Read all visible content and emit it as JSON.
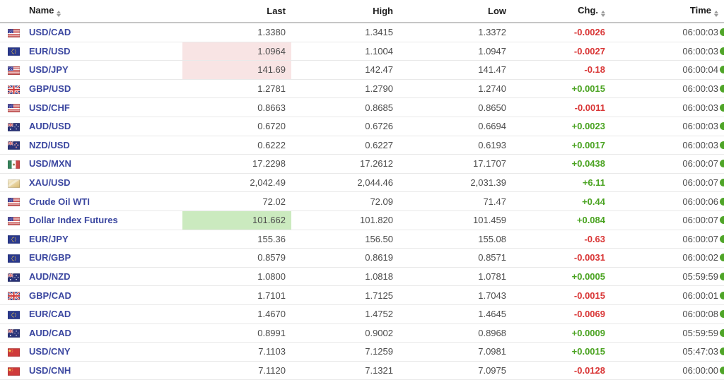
{
  "colors": {
    "link_blue": "#3b47a0",
    "up_green": "#4aa321",
    "down_red": "#d93636",
    "highlight_up_bg": "#cbeabf",
    "highlight_down_bg": "#f8e4e4",
    "realtime_dot_green": "#4fa528"
  },
  "table": {
    "columns": [
      {
        "key": "name",
        "label": "Name",
        "sortable": true,
        "align": "left"
      },
      {
        "key": "last",
        "label": "Last",
        "sortable": false,
        "align": "right"
      },
      {
        "key": "high",
        "label": "High",
        "sortable": false,
        "align": "right"
      },
      {
        "key": "low",
        "label": "Low",
        "sortable": false,
        "align": "right"
      },
      {
        "key": "chg",
        "label": "Chg.",
        "sortable": true,
        "align": "right"
      },
      {
        "key": "time",
        "label": "Time",
        "sortable": true,
        "align": "right"
      }
    ],
    "rows": [
      {
        "flag": "us",
        "name": "USD/CAD",
        "last": "1.3380",
        "high": "1.3415",
        "low": "1.3372",
        "chg": "-0.0026",
        "change_direction": "down",
        "time": "06:00:03",
        "last_highlight": null
      },
      {
        "flag": "eu",
        "name": "EUR/USD",
        "last": "1.0964",
        "high": "1.1004",
        "low": "1.0947",
        "chg": "-0.0027",
        "change_direction": "down",
        "time": "06:00:03",
        "last_highlight": "down"
      },
      {
        "flag": "us",
        "name": "USD/JPY",
        "last": "141.69",
        "high": "142.47",
        "low": "141.47",
        "chg": "-0.18",
        "change_direction": "down",
        "time": "06:00:04",
        "last_highlight": "down"
      },
      {
        "flag": "gb",
        "name": "GBP/USD",
        "last": "1.2781",
        "high": "1.2790",
        "low": "1.2740",
        "chg": "+0.0015",
        "change_direction": "up",
        "time": "06:00:03",
        "last_highlight": null
      },
      {
        "flag": "us",
        "name": "USD/CHF",
        "last": "0.8663",
        "high": "0.8685",
        "low": "0.8650",
        "chg": "-0.0011",
        "change_direction": "down",
        "time": "06:00:03",
        "last_highlight": null
      },
      {
        "flag": "au",
        "name": "AUD/USD",
        "last": "0.6720",
        "high": "0.6726",
        "low": "0.6694",
        "chg": "+0.0023",
        "change_direction": "up",
        "time": "06:00:03",
        "last_highlight": null
      },
      {
        "flag": "nz",
        "name": "NZD/USD",
        "last": "0.6222",
        "high": "0.6227",
        "low": "0.6193",
        "chg": "+0.0017",
        "change_direction": "up",
        "time": "06:00:03",
        "last_highlight": null
      },
      {
        "flag": "mx",
        "name": "USD/MXN",
        "last": "17.2298",
        "high": "17.2612",
        "low": "17.1707",
        "chg": "+0.0438",
        "change_direction": "up",
        "time": "06:00:07",
        "last_highlight": null
      },
      {
        "flag": "xau",
        "name": "XAU/USD",
        "last": "2,042.49",
        "high": "2,044.46",
        "low": "2,031.39",
        "chg": "+6.11",
        "change_direction": "up",
        "time": "06:00:07",
        "last_highlight": null
      },
      {
        "flag": "us",
        "name": "Crude Oil WTI",
        "last": "72.02",
        "high": "72.09",
        "low": "71.47",
        "chg": "+0.44",
        "change_direction": "up",
        "time": "06:00:06",
        "last_highlight": null
      },
      {
        "flag": "us",
        "name": "Dollar Index Futures",
        "last": "101.662",
        "high": "101.820",
        "low": "101.459",
        "chg": "+0.084",
        "change_direction": "up",
        "time": "06:00:07",
        "last_highlight": "up"
      },
      {
        "flag": "eu",
        "name": "EUR/JPY",
        "last": "155.36",
        "high": "156.50",
        "low": "155.08",
        "chg": "-0.63",
        "change_direction": "down",
        "time": "06:00:07",
        "last_highlight": null
      },
      {
        "flag": "eu",
        "name": "EUR/GBP",
        "last": "0.8579",
        "high": "0.8619",
        "low": "0.8571",
        "chg": "-0.0031",
        "change_direction": "down",
        "time": "06:00:02",
        "last_highlight": null
      },
      {
        "flag": "au",
        "name": "AUD/NZD",
        "last": "1.0800",
        "high": "1.0818",
        "low": "1.0781",
        "chg": "+0.0005",
        "change_direction": "up",
        "time": "05:59:59",
        "last_highlight": null
      },
      {
        "flag": "gb",
        "name": "GBP/CAD",
        "last": "1.7101",
        "high": "1.7125",
        "low": "1.7043",
        "chg": "-0.0015",
        "change_direction": "down",
        "time": "06:00:01",
        "last_highlight": null
      },
      {
        "flag": "eu",
        "name": "EUR/CAD",
        "last": "1.4670",
        "high": "1.4752",
        "low": "1.4645",
        "chg": "-0.0069",
        "change_direction": "down",
        "time": "06:00:08",
        "last_highlight": null
      },
      {
        "flag": "au",
        "name": "AUD/CAD",
        "last": "0.8991",
        "high": "0.9002",
        "low": "0.8968",
        "chg": "+0.0009",
        "change_direction": "up",
        "time": "05:59:59",
        "last_highlight": null
      },
      {
        "flag": "cn",
        "name": "USD/CNY",
        "last": "7.1103",
        "high": "7.1259",
        "low": "7.0981",
        "chg": "+0.0015",
        "change_direction": "up",
        "time": "05:47:03",
        "last_highlight": null
      },
      {
        "flag": "cn",
        "name": "USD/CNH",
        "last": "7.1120",
        "high": "7.1321",
        "low": "7.0975",
        "chg": "-0.0128",
        "change_direction": "down",
        "time": "06:00:00",
        "last_highlight": null
      }
    ]
  }
}
